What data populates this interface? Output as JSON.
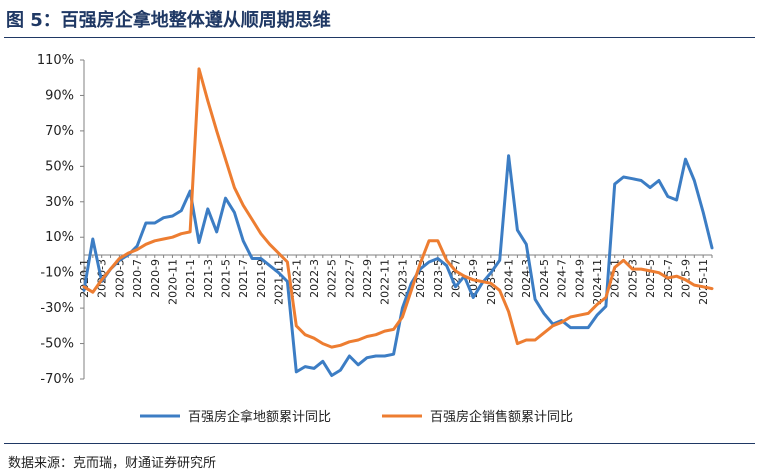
{
  "header": {
    "title": "图 5：百强房企拿地整体遵从顺周期思维"
  },
  "footer": {
    "source": "数据来源：克而瑞，财通证券研究所"
  },
  "chart_data": {
    "type": "line",
    "title": "",
    "xlabel": "",
    "ylabel": "",
    "ylim": [
      -70,
      110
    ],
    "yticks": [
      -70,
      -50,
      -30,
      -10,
      10,
      30,
      50,
      70,
      90,
      110
    ],
    "ytick_labels": [
      "-70%",
      "-50%",
      "-30%",
      "-10%",
      "10%",
      "30%",
      "50%",
      "70%",
      "90%",
      "110%"
    ],
    "grid": false,
    "legend": "bottom",
    "colors": {
      "land": "#3c7dc4",
      "sales": "#ed7d31"
    },
    "xtick_labels": [
      "2020-1",
      "2020-3",
      "2020-5",
      "2020-7",
      "2020-9",
      "2020-11",
      "2021-1",
      "2021-3",
      "2021-5",
      "2021-7",
      "2021-9",
      "2021-11",
      "2022-1",
      "2022-3",
      "2022-5",
      "2022-7",
      "2022-9",
      "2022-11",
      "2023-1",
      "2023-3",
      "2023-5",
      "2023-7",
      "2023-9",
      "2023-11",
      "2024-1",
      "2024-3",
      "2024-5",
      "2024-7",
      "2024-9",
      "2024-11",
      "2025-1",
      "2025-3",
      "2025-5",
      "2025-7",
      "2025-9",
      "2025-11"
    ],
    "x": [
      "2020-1",
      "2020-2",
      "2020-3",
      "2020-4",
      "2020-5",
      "2020-6",
      "2020-7",
      "2020-8",
      "2020-9",
      "2020-10",
      "2020-11",
      "2020-12",
      "2021-1",
      "2021-2",
      "2021-3",
      "2021-4",
      "2021-5",
      "2021-6",
      "2021-7",
      "2021-8",
      "2021-9",
      "2021-10",
      "2021-11",
      "2021-12",
      "2022-1",
      "2022-2",
      "2022-3",
      "2022-4",
      "2022-5",
      "2022-6",
      "2022-7",
      "2022-8",
      "2022-9",
      "2022-10",
      "2022-11",
      "2022-12",
      "2023-1",
      "2023-2",
      "2023-3",
      "2023-4",
      "2023-5",
      "2023-6",
      "2023-7",
      "2023-8",
      "2023-9",
      "2023-10",
      "2023-11",
      "2023-12",
      "2024-1",
      "2024-2",
      "2024-3",
      "2024-4",
      "2024-5",
      "2024-6",
      "2024-7",
      "2024-8",
      "2024-9",
      "2024-10",
      "2024-11",
      "2024-12",
      "2025-1",
      "2025-2",
      "2025-3",
      "2025-4",
      "2025-5",
      "2025-6",
      "2025-7",
      "2025-8",
      "2025-9",
      "2025-10",
      "2025-11",
      "2025-12"
    ],
    "series": [
      {
        "name": "百强房企拿地额累计同比",
        "values": [
          -20,
          9,
          -15,
          -8,
          -3,
          0,
          5,
          18,
          18,
          21,
          22,
          25,
          36,
          7,
          26,
          13,
          32,
          24,
          8,
          -2,
          -2,
          -6,
          -10,
          -15,
          -66,
          -63,
          -64,
          -60,
          -68,
          -65,
          -57,
          -62,
          -58,
          -57,
          -57,
          -56,
          -30,
          -16,
          -8,
          -4,
          -2,
          -6,
          -18,
          -12,
          -24,
          -16,
          -10,
          -3,
          56,
          14,
          6,
          -25,
          -33,
          -39,
          -37,
          -41,
          -41,
          -41,
          -34,
          -29,
          40,
          44,
          43,
          42,
          38,
          42,
          33,
          31,
          54,
          42,
          24,
          4
        ]
      },
      {
        "name": "百强房企销售额累计同比",
        "values": [
          -18,
          -21,
          -14,
          -8,
          -2,
          1,
          3,
          6,
          8,
          9,
          10,
          12,
          13,
          105,
          87,
          70,
          54,
          38,
          28,
          20,
          12,
          6,
          1,
          -4,
          -40,
          -45,
          -47,
          -50,
          -52,
          -51,
          -49,
          -48,
          -46,
          -45,
          -43,
          -42,
          -35,
          -20,
          -5,
          8,
          8,
          -3,
          -9,
          -12,
          -14,
          -15,
          -16,
          -20,
          -32,
          -50,
          -48,
          -48,
          -44,
          -40,
          -38,
          -35,
          -34,
          -33,
          -28,
          -24,
          -7,
          -3,
          -8,
          -8,
          -9,
          -10,
          -13,
          -12,
          -14,
          -17,
          -18,
          -19
        ]
      }
    ]
  }
}
